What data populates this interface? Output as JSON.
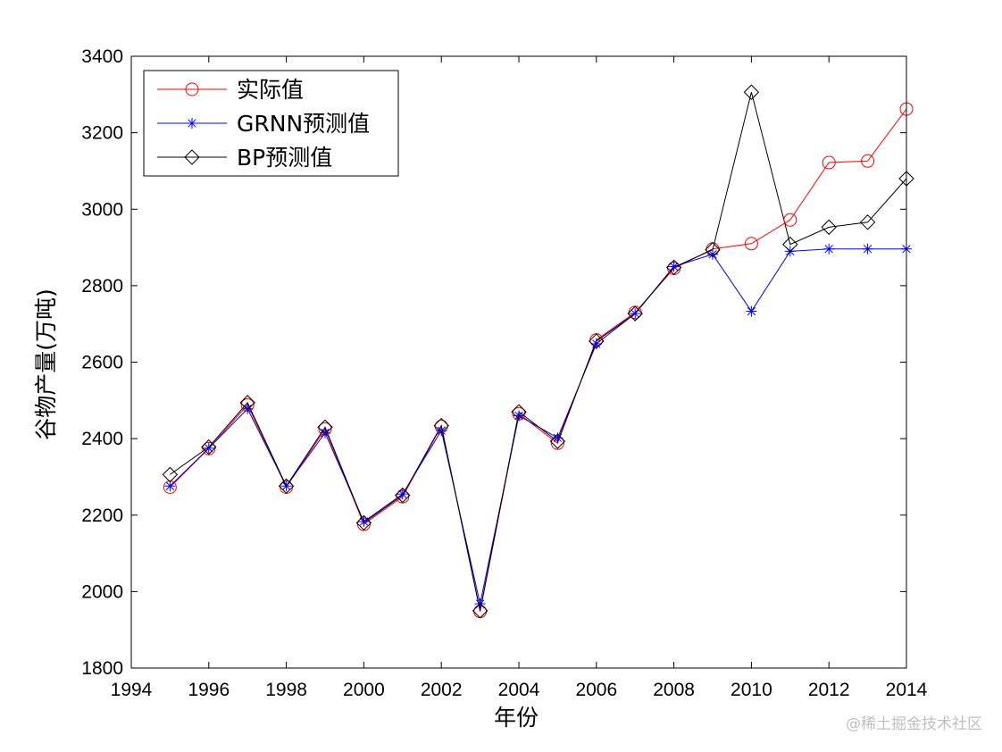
{
  "chart_data": {
    "type": "line",
    "title": "",
    "xlabel": "年份",
    "ylabel": "谷物产量(万吨)",
    "xlim": [
      1994,
      2014
    ],
    "ylim": [
      1800,
      3400
    ],
    "xticks": [
      1994,
      1996,
      1998,
      2000,
      2002,
      2004,
      2006,
      2008,
      2010,
      2012,
      2014
    ],
    "yticks": [
      1800,
      2000,
      2200,
      2400,
      2600,
      2800,
      3000,
      3200,
      3400
    ],
    "x": [
      1995,
      1996,
      1997,
      1998,
      1999,
      2000,
      2001,
      2002,
      2003,
      2004,
      2005,
      2006,
      2007,
      2008,
      2009,
      2010,
      2011,
      2012,
      2013,
      2014
    ],
    "grid": false,
    "legend_position": "top-left",
    "series": [
      {
        "name": "实际值",
        "color": "#ff0000",
        "marker": "circle",
        "values": [
          2273,
          2374,
          2488,
          2273,
          2425,
          2176,
          2248,
          2432,
          1948,
          2465,
          2388,
          2658,
          2730,
          2845,
          2896,
          2910,
          2972,
          3122,
          3126,
          3262
        ]
      },
      {
        "name": "GRNN预测值",
        "color": "#0000ff",
        "marker": "star",
        "values": [
          2276,
          2375,
          2478,
          2276,
          2415,
          2183,
          2255,
          2421,
          1968,
          2460,
          2402,
          2648,
          2727,
          2850,
          2882,
          2733,
          2890,
          2896,
          2896,
          2896
        ]
      },
      {
        "name": "BP预测值",
        "color": "#000000",
        "marker": "diamond",
        "values": [
          2306,
          2378,
          2494,
          2276,
          2430,
          2180,
          2252,
          2434,
          1950,
          2470,
          2393,
          2655,
          2727,
          2848,
          2894,
          3306,
          2908,
          2953,
          2966,
          3080
        ]
      }
    ]
  },
  "watermark": "@稀土掘金技术社区"
}
